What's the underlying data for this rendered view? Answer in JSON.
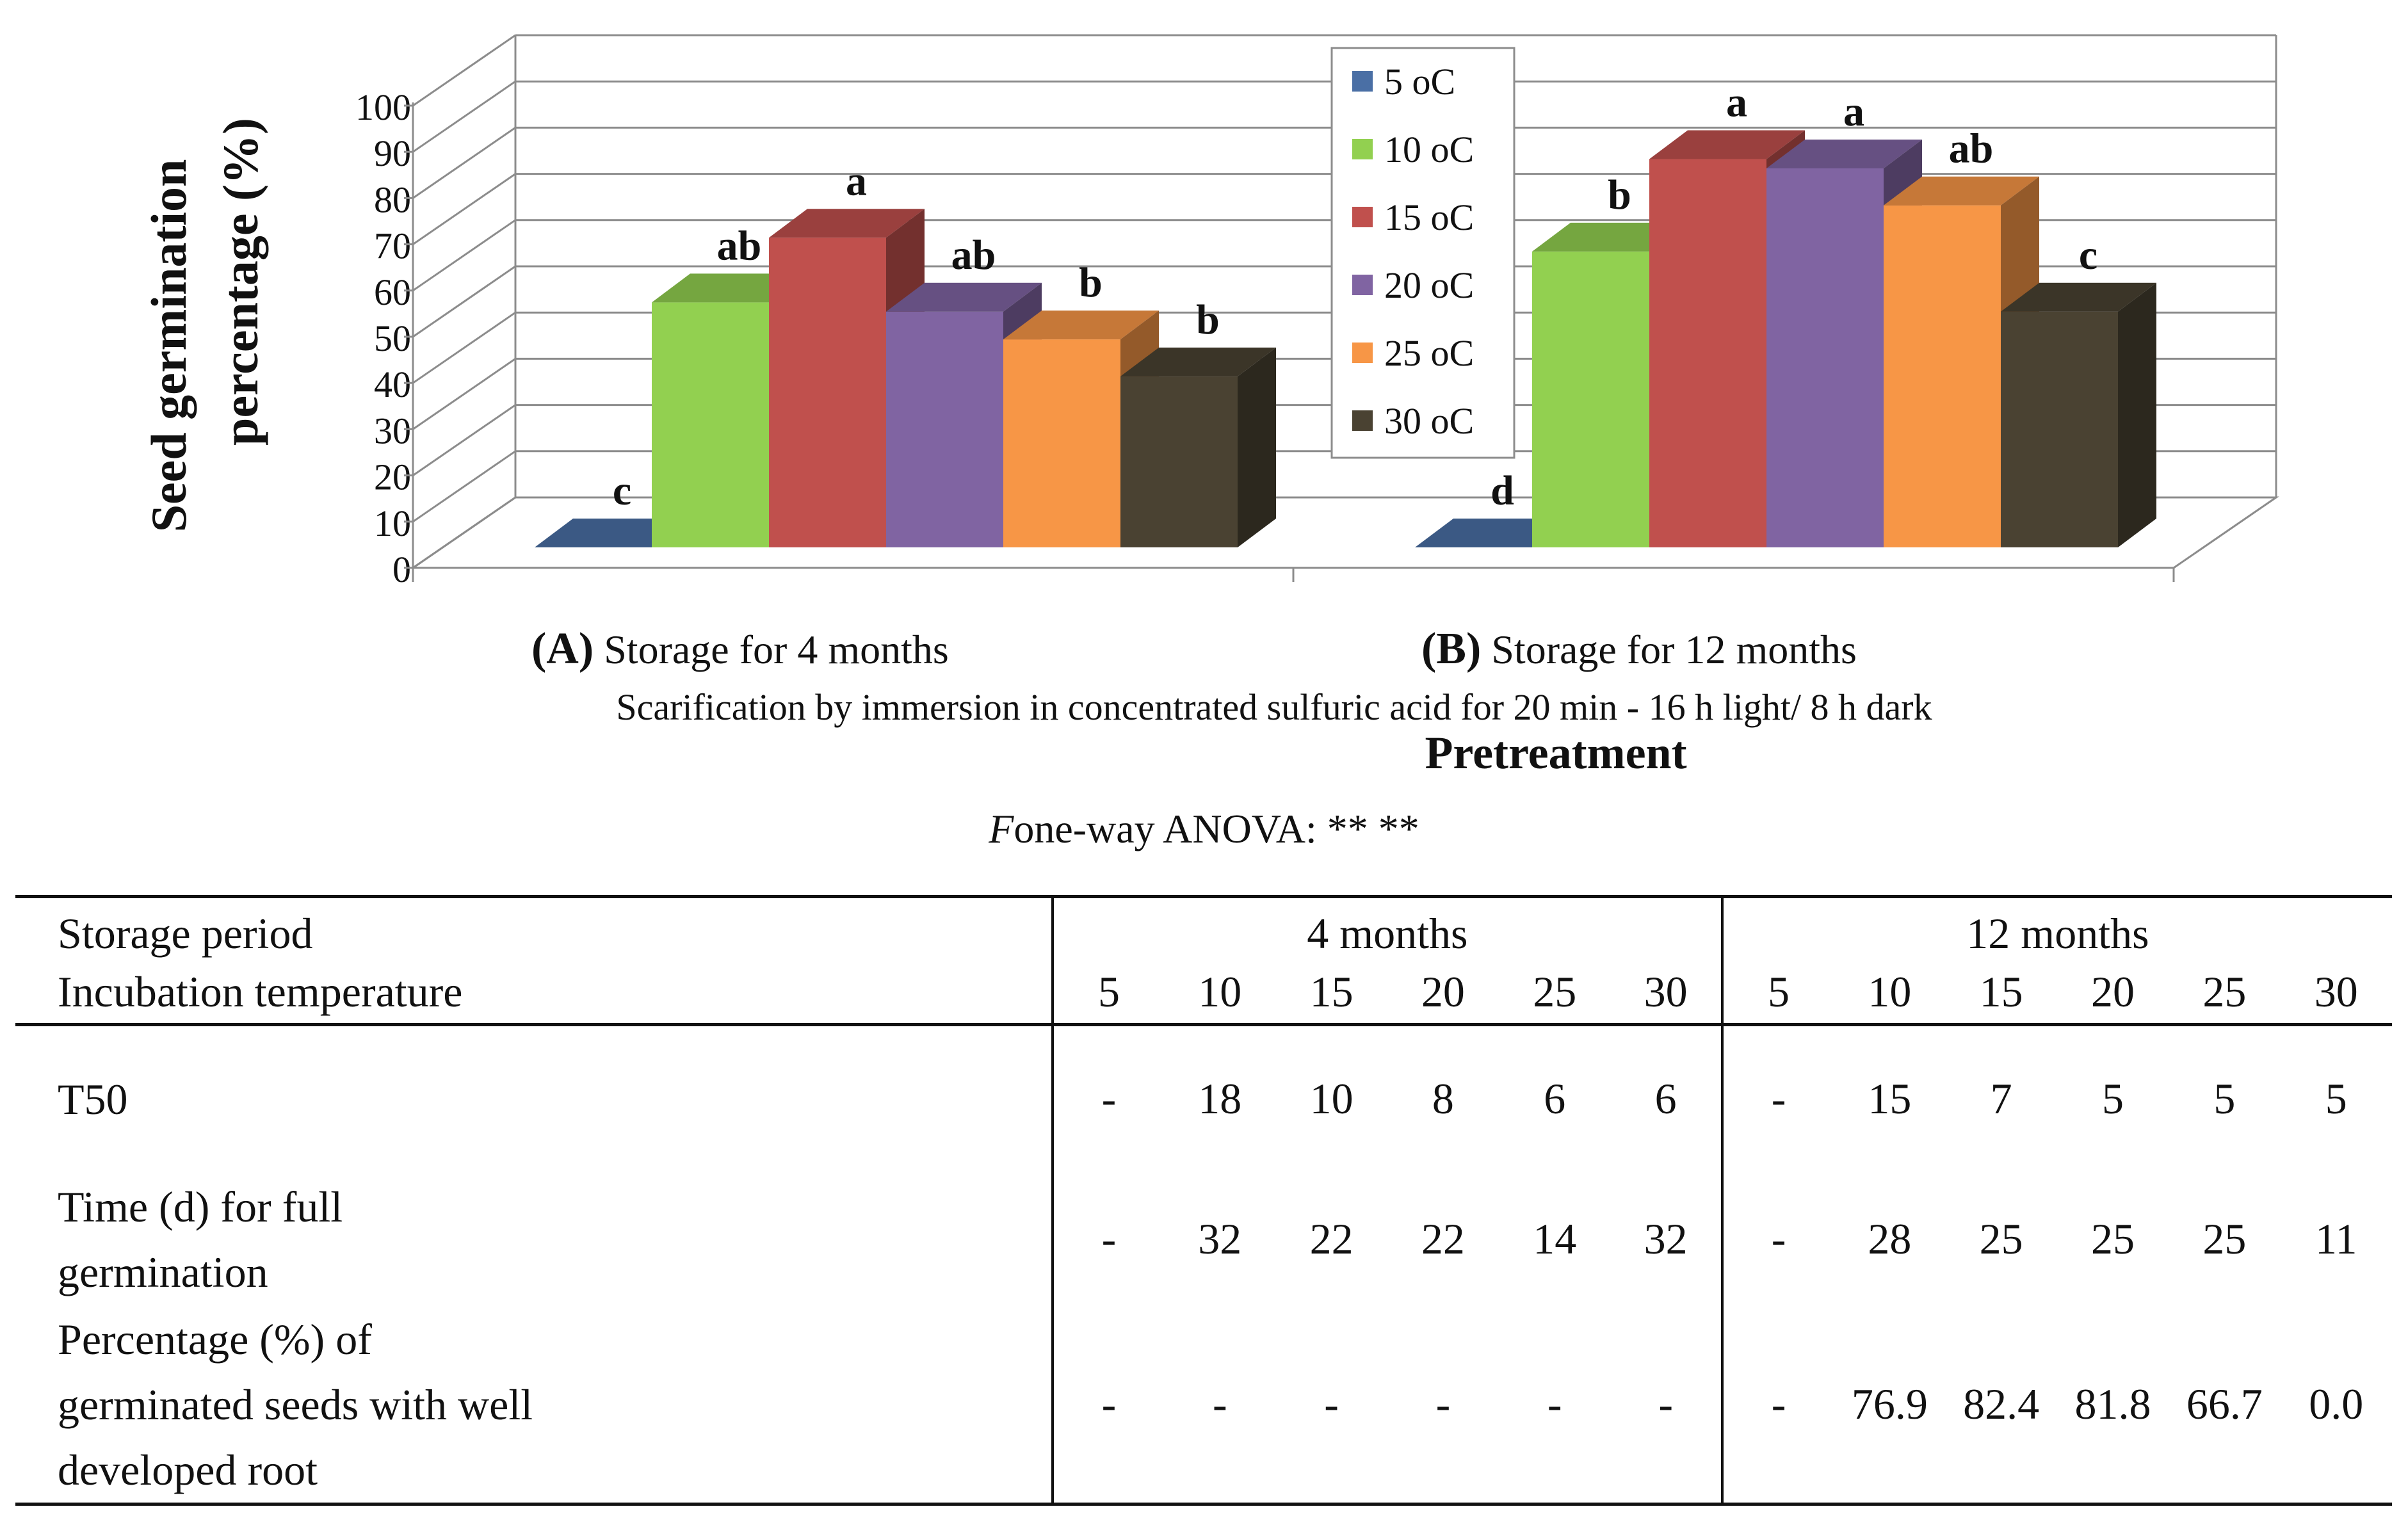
{
  "chart_data": {
    "type": "bar",
    "title": "",
    "ylabel_line1": "Seed germination",
    "ylabel_line2": "percentage (%)",
    "xlabel": "Pretreatment",
    "subtitle": "Scarification by immersion in concentrated sulfuric acid for 20 min - 16 h light/ 8 h dark",
    "ylim": [
      0,
      100
    ],
    "yticks": [
      "0",
      "10",
      "20",
      "30",
      "40",
      "50",
      "60",
      "70",
      "80",
      "90",
      "100"
    ],
    "categories": [
      {
        "tag": "(A)",
        "label": "Storage for 4 months"
      },
      {
        "tag": "(B)",
        "label": "Storage for 12 months"
      }
    ],
    "legend_position": "top-center",
    "series": [
      {
        "name": "5 oC",
        "color": "#4a6fa5",
        "values": [
          0,
          0
        ],
        "letters": [
          "c",
          "d"
        ]
      },
      {
        "name": "10 oC",
        "color": "#92d050",
        "values": [
          53,
          64
        ],
        "letters": [
          "ab",
          "b"
        ]
      },
      {
        "name": "15 oC",
        "color": "#c0504d",
        "values": [
          67,
          84
        ],
        "letters": [
          "a",
          "a"
        ]
      },
      {
        "name": "20 oC",
        "color": "#8064a2",
        "values": [
          51,
          82
        ],
        "letters": [
          "ab",
          "a"
        ]
      },
      {
        "name": "25 oC",
        "color": "#f79646",
        "values": [
          45,
          74
        ],
        "letters": [
          "b",
          "ab"
        ]
      },
      {
        "name": "30 oC",
        "color": "#4a4232",
        "values": [
          37,
          51
        ],
        "letters": [
          "b",
          "c"
        ]
      }
    ]
  },
  "anova": {
    "prefix": "F",
    "text": "one-way ANOVA: ** **"
  },
  "table": {
    "storage_label": "Storage period",
    "storage_groups": [
      "4 months",
      "12 months"
    ],
    "temp_label": "Incubation temperature",
    "temps": [
      "5",
      "10",
      "15",
      "20",
      "25",
      "30",
      "5",
      "10",
      "15",
      "20",
      "25",
      "30"
    ],
    "rows": [
      {
        "label_lines": [
          "T50"
        ],
        "values": [
          "-",
          "18",
          "10",
          "8",
          "6",
          "6",
          "-",
          "15",
          "7",
          "5",
          "5",
          "5"
        ]
      },
      {
        "label_lines": [
          "Time (d) for full",
          "germination"
        ],
        "values": [
          "-",
          "32",
          "22",
          "22",
          "14",
          "32",
          "-",
          "28",
          "25",
          "25",
          "25",
          "11"
        ]
      },
      {
        "label_lines": [
          "Percentage (%) of",
          "germinated seeds with well",
          "developed root"
        ],
        "values": [
          "-",
          "-",
          "-",
          "-",
          "-",
          "-",
          "-",
          "76.9",
          "82.4",
          "81.8",
          "66.7",
          "0.0"
        ]
      }
    ]
  }
}
